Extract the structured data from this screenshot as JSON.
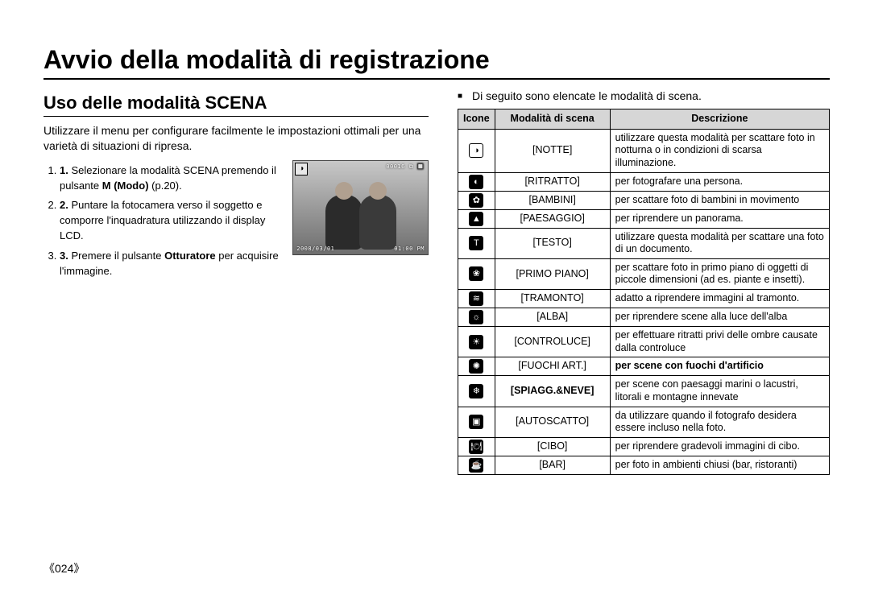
{
  "title": "Avvio della modalità di registrazione",
  "subtitle": "Uso delle modalità SCENA",
  "intro": "Utilizzare il menu per configurare facilmente le impostazioni ottimali per una varietà di situazioni di ripresa.",
  "steps": [
    {
      "pre": "Selezionare la modalità SCENA premendo il pulsante ",
      "bold": "M (Modo)",
      "post": " (p.20)."
    },
    {
      "pre": "Puntare la fotocamera verso il soggetto e comporre l'inquadratura utilizzando il display LCD.",
      "bold": "",
      "post": ""
    },
    {
      "pre": "Premere il pulsante ",
      "bold": "Otturatore",
      "post": " per acquisire l'immagine."
    }
  ],
  "lcd": {
    "top_left_glyph": "◑",
    "top_right": "00016  ⧉  🔲",
    "bot_left": "2008/03/01",
    "bot_right": "01:00 PM"
  },
  "list_heading": "Di seguito sono elencate le modalità di scena.",
  "table": {
    "headers": {
      "icon": "Icone",
      "mode": "Modalità di scena",
      "desc": "Descrizione"
    },
    "rows": [
      {
        "glyph": "◑",
        "mode": "[NOTTE]",
        "desc": "utilizzare questa modalità per scattare foto in notturna o in condizioni di scarsa illuminazione.",
        "icon_style": "outline"
      },
      {
        "glyph": "◐",
        "mode": "[RITRATTO]",
        "desc": "per fotografare una persona."
      },
      {
        "glyph": "✿",
        "mode": "[BAMBINI]",
        "desc": "per scattare foto di bambini in movimento"
      },
      {
        "glyph": "▲",
        "mode": "[PAESAGGIO]",
        "desc": "per riprendere un panorama."
      },
      {
        "glyph": "T",
        "mode": "[TESTO]",
        "desc": "utilizzare questa modalità per scattare una foto di un documento."
      },
      {
        "glyph": "❀",
        "mode": "[PRIMO PIANO]",
        "desc": "per scattare foto in primo piano di oggetti di piccole dimensioni (ad es. piante e insetti)."
      },
      {
        "glyph": "≋",
        "mode": "[TRAMONTO]",
        "desc": "adatto a riprendere immagini al tramonto."
      },
      {
        "glyph": "☼",
        "mode": "[ALBA]",
        "desc": "per riprendere scene alla luce dell'alba"
      },
      {
        "glyph": "☀",
        "mode": "[CONTROLUCE]",
        "desc": "per effettuare ritratti privi delle ombre causate dalla controluce"
      },
      {
        "glyph": "✺",
        "mode": "[FUOCHI ART.]",
        "desc": "per scene con fuochi d'artificio",
        "desc_bold": true
      },
      {
        "glyph": "❄",
        "mode": "[SPIAGG.&NEVE]",
        "desc": "per scene con paesaggi marini o lacustri, litorali e montagne innevate",
        "mode_bold": true
      },
      {
        "glyph": "▣",
        "mode": "[AUTOSCATTO]",
        "desc": "da utilizzare quando il fotografo desidera essere incluso nella foto."
      },
      {
        "glyph": "🍽",
        "mode": "[CIBO]",
        "desc": "per riprendere gradevoli immagini di cibo."
      },
      {
        "glyph": "☕",
        "mode": "[BAR]",
        "desc": "per foto in ambienti chiusi (bar, ristoranti)"
      }
    ]
  },
  "page_number": "《024》",
  "colors": {
    "text": "#000000",
    "rule": "#000000",
    "table_header_bg": "#d6d6d6",
    "icon_bg": "#000000",
    "icon_fg": "#ffffff"
  }
}
